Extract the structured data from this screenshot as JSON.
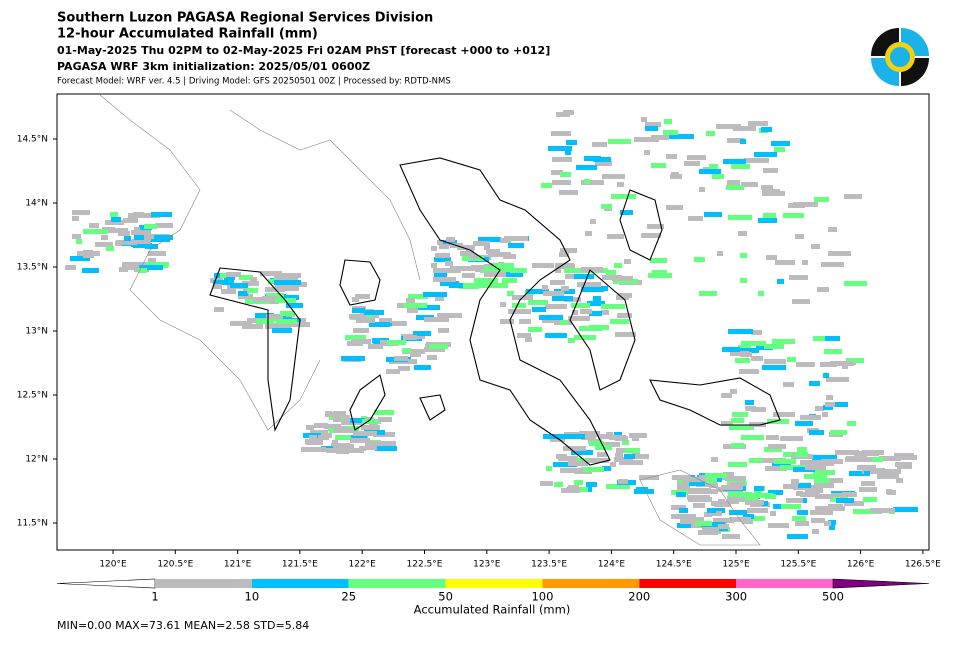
{
  "header": {
    "lines": [
      "Southern Luzon PAGASA Regional Services Division",
      "12-hour Accumulated Rainfall (mm)",
      "01-May-2025 Thu 02PM to 02-May-2025 Fri 02AM PhST [forecast +000 to +012]",
      "PAGASA WRF 3km initialization: 2025/05/01 0600Z",
      "Forecast Model: WRF ver. 4.5 | Driving Model: GFS 20250501 00Z | Processed by: RDTD-NMS"
    ]
  },
  "map": {
    "lon_labels": [
      "120°E",
      "120.5°E",
      "121°E",
      "121.5°E",
      "122°E",
      "122.5°E",
      "123°E",
      "123.5°E",
      "124°E",
      "124.5°E",
      "125°E",
      "125.5°E",
      "126°E",
      "126.5°E"
    ],
    "lat_labels": [
      "14.5°N",
      "14°N",
      "13.5°N",
      "13°N",
      "12.5°N",
      "12°N",
      "11.5°N"
    ]
  },
  "colorbar": {
    "ticks": [
      1,
      10,
      25,
      50,
      100,
      200,
      300,
      500
    ],
    "colors": [
      "#ffffff",
      "#bdbbbd",
      "#00bfff",
      "#66ff80",
      "#ffff00",
      "#ff9900",
      "#ff0000",
      "#ff66cc",
      "#800080"
    ],
    "label": "Accumulated Rainfall (mm)"
  },
  "stats": "MIN=0.00   MAX=73.61   MEAN=2.58   STD=5.84"
}
